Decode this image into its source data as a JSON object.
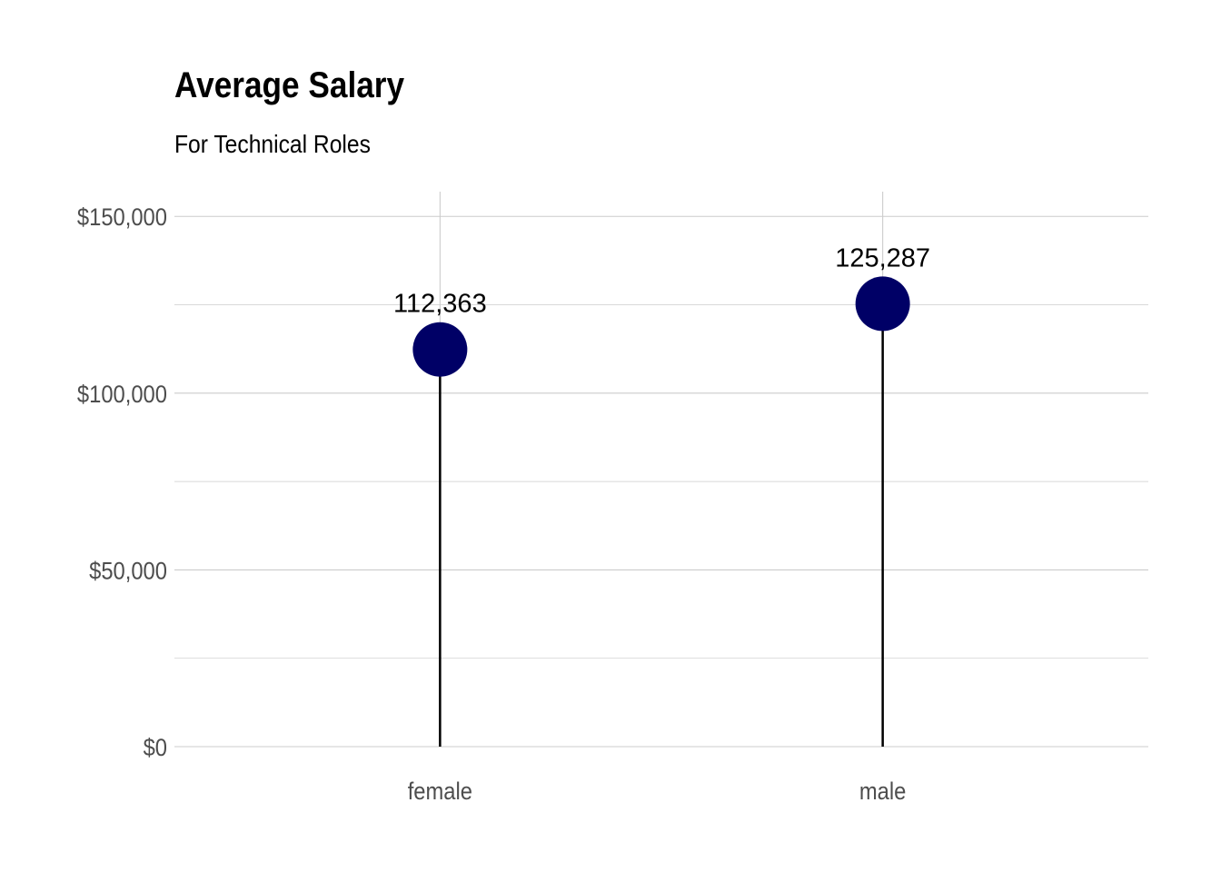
{
  "chart_data": {
    "type": "lollipop",
    "title": "Average Salary",
    "subtitle": "For Technical Roles",
    "xlabel": "",
    "ylabel": "",
    "categories": [
      "female",
      "male"
    ],
    "values": [
      112363,
      125287
    ],
    "data_labels": [
      "112,363",
      "125,287"
    ],
    "y_ticks": [
      0,
      50000,
      100000,
      150000
    ],
    "y_tick_labels": [
      "$0",
      "$50,000",
      "$100,000",
      "$150,000"
    ],
    "ylim": [
      0,
      157000
    ],
    "grid": true,
    "legend": "none",
    "colors": {
      "point": "#000066",
      "stem": "#000000",
      "grid": "#cccccc",
      "tick_text": "#4d4d4d"
    }
  }
}
